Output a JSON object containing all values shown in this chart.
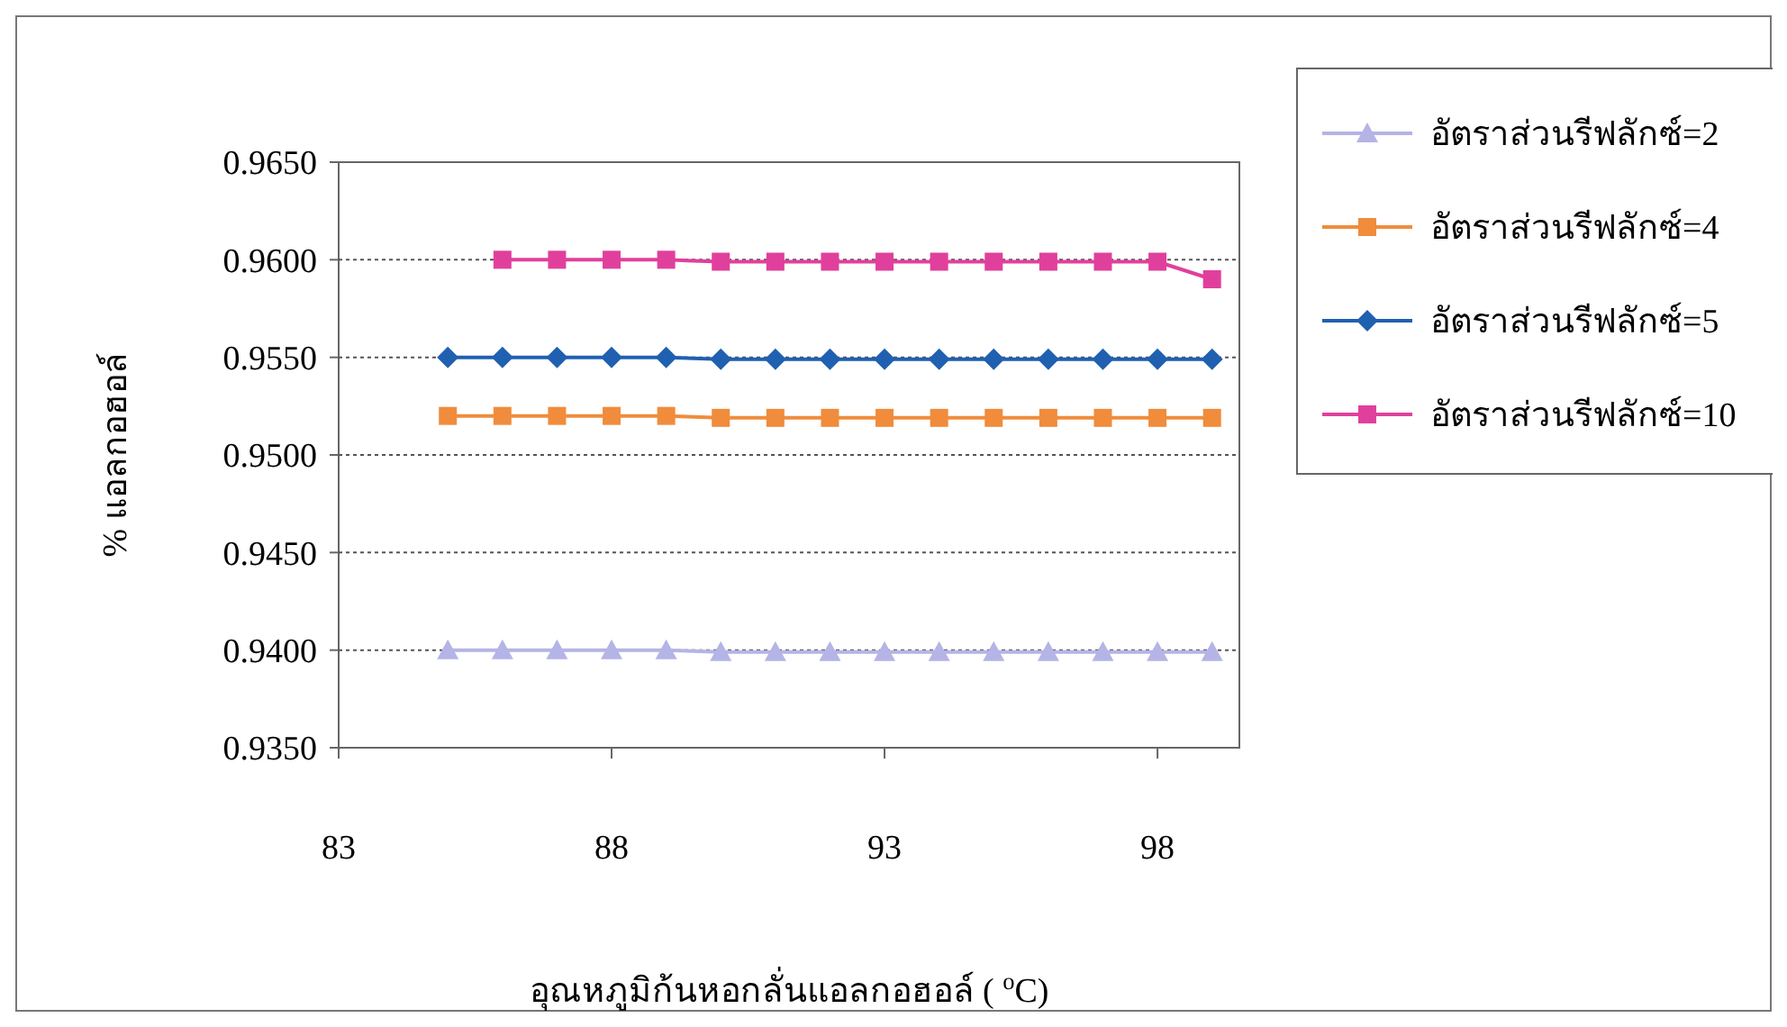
{
  "chart_data": {
    "type": "line",
    "xlabel": "อุณหภูมิก้นหอกลั่นแอลกอฮอล์ ( $^{o}$C)",
    "ylabel": "% แอลกอฮอล์",
    "xlim": [
      83,
      99.5
    ],
    "xticks": [
      83,
      88,
      93,
      98
    ],
    "ylim": [
      0.935,
      0.965
    ],
    "yticks": [
      {
        "value": 0.935,
        "label": "0.9350"
      },
      {
        "value": 0.94,
        "label": "0.9400"
      },
      {
        "value": 0.945,
        "label": "0.9450"
      },
      {
        "value": 0.95,
        "label": "0.9500"
      },
      {
        "value": 0.955,
        "label": "0.9550"
      },
      {
        "value": 0.96,
        "label": "0.9600"
      },
      {
        "value": 0.965,
        "label": "0.9650"
      }
    ],
    "grid": "y",
    "legend": "right",
    "x": [
      85,
      86,
      87,
      88,
      89,
      90,
      91,
      92,
      93,
      94,
      95,
      96,
      97,
      98,
      99
    ],
    "series": [
      {
        "name": "อัตราส่วนรีฟลักซ์=2",
        "color": "#b4b4e6",
        "marker": "triangle",
        "values": [
          0.94,
          0.94,
          0.94,
          0.94,
          0.94,
          0.9399,
          0.9399,
          0.9399,
          0.9399,
          0.9399,
          0.9399,
          0.9399,
          0.9399,
          0.9399,
          0.9399
        ]
      },
      {
        "name": "อัตราส่วนรีฟลักซ์=4",
        "color": "#f08c3c",
        "marker": "square",
        "values": [
          0.952,
          0.952,
          0.952,
          0.952,
          0.952,
          0.9519,
          0.9519,
          0.9519,
          0.9519,
          0.9519,
          0.9519,
          0.9519,
          0.9519,
          0.9519,
          0.9519
        ]
      },
      {
        "name": "อัตราส่วนรีฟลักซ์=5",
        "color": "#2060b0",
        "marker": "diamond",
        "values": [
          0.955,
          0.955,
          0.955,
          0.955,
          0.955,
          0.9549,
          0.9549,
          0.9549,
          0.9549,
          0.9549,
          0.9549,
          0.9549,
          0.9549,
          0.9549,
          0.9549
        ]
      },
      {
        "name": "อัตราส่วนรีฟลักซ์=10",
        "color": "#e0409c",
        "marker": "square",
        "values": [
          null,
          0.96,
          0.96,
          0.96,
          0.96,
          0.9599,
          0.9599,
          0.9599,
          0.9599,
          0.9599,
          0.9599,
          0.9599,
          0.9599,
          0.9599,
          0.959
        ]
      }
    ]
  }
}
